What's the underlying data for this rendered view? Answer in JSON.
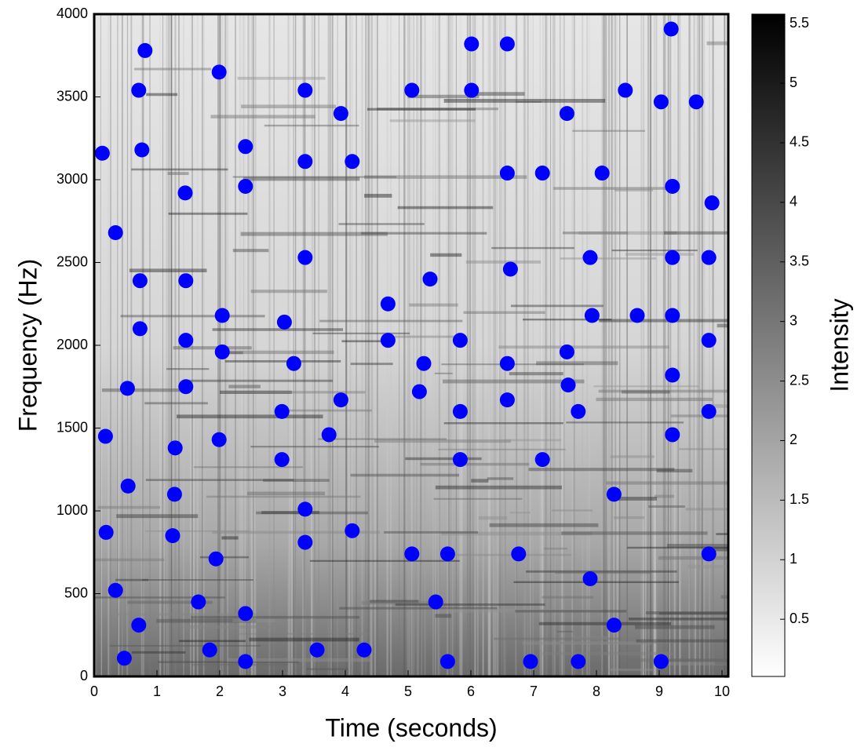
{
  "chart_data": {
    "type": "scatter",
    "xlabel": "Time (seconds)",
    "ylabel": "Frequency (Hz)",
    "xlim": [
      0,
      10.1
    ],
    "ylim": [
      0,
      4000
    ],
    "xticks": [
      0,
      1,
      2,
      3,
      4,
      5,
      6,
      7,
      8,
      9,
      10
    ],
    "yticks": [
      0,
      500,
      1000,
      1500,
      2000,
      2500,
      3000,
      3500,
      4000
    ],
    "color": "#0000ff",
    "x": [
      0.48,
      0.34,
      0.71,
      0.19,
      0.54,
      0.18,
      0.53,
      0.73,
      0.73,
      0.34,
      0.13,
      0.76,
      0.71,
      0.81,
      1.45,
      1.46,
      1.46,
      1.46,
      1.29,
      1.28,
      1.25,
      1.66,
      1.84,
      1.94,
      1.99,
      2.04,
      2.04,
      1.99,
      2.41,
      2.41,
      2.41,
      2.41,
      3.03,
      3.18,
      2.99,
      2.99,
      3.36,
      3.36,
      3.36,
      3.36,
      3.36,
      3.55,
      3.74,
      3.93,
      3.93,
      4.11,
      4.11,
      4.3,
      4.68,
      4.68,
      5.06,
      5.06,
      5.18,
      5.25,
      5.35,
      5.44,
      5.63,
      5.63,
      5.83,
      5.83,
      5.83,
      6.01,
      6.01,
      6.58,
      6.58,
      6.63,
      6.58,
      6.58,
      6.76,
      6.95,
      7.14,
      7.14,
      7.53,
      7.53,
      7.55,
      7.71,
      7.71,
      7.9,
      7.93,
      7.9,
      8.09,
      8.28,
      8.28,
      8.46,
      8.65,
      9.03,
      9.03,
      9.19,
      9.21,
      9.21,
      9.21,
      9.21,
      9.21,
      9.59,
      9.84,
      9.79,
      9.79,
      9.79,
      9.79
    ],
    "values": [
      110,
      520,
      310,
      870,
      1150,
      1450,
      1740,
      2100,
      2390,
      2680,
      3160,
      3180,
      3540,
      3780,
      2920,
      2390,
      2030,
      1750,
      1380,
      1100,
      850,
      450,
      160,
      710,
      1430,
      1960,
      2180,
      3650,
      3200,
      2960,
      380,
      90,
      2140,
      1890,
      1600,
      1310,
      3540,
      3110,
      2530,
      1010,
      810,
      160,
      1460,
      1670,
      3400,
      3110,
      880,
      160,
      2250,
      2030,
      3540,
      740,
      1720,
      1890,
      2400,
      450,
      740,
      90,
      2030,
      1600,
      1310,
      3540,
      3820,
      3820,
      3040,
      2460,
      1890,
      1670,
      740,
      90,
      3040,
      1310,
      3400,
      1960,
      1760,
      1600,
      90,
      2530,
      2180,
      590,
      3040,
      1100,
      310,
      3540,
      2180,
      3470,
      90,
      3910,
      2960,
      2530,
      2180,
      1820,
      1460,
      3470,
      2860,
      2530,
      2030,
      1600,
      740
    ],
    "colorbar": {
      "label": "Intensity",
      "lim": [
        0.02,
        5.58
      ],
      "ticks": [
        0.5,
        1,
        1.5,
        2,
        2.5,
        3,
        3.5,
        4,
        4.5,
        5,
        5.5
      ]
    }
  }
}
